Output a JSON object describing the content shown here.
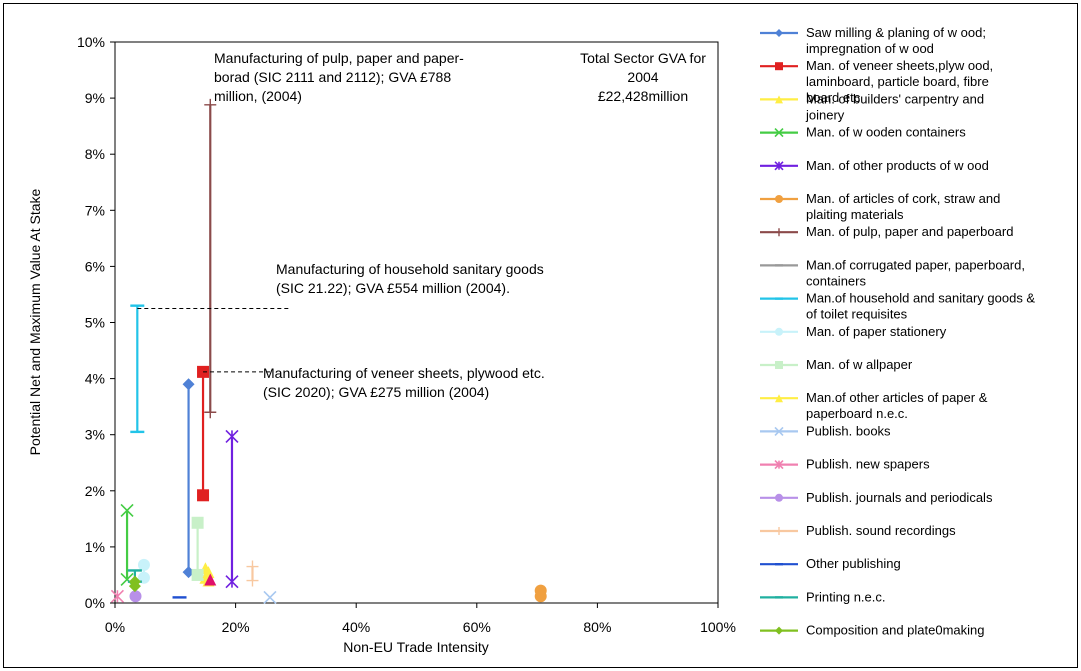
{
  "chart_data": {
    "type": "scatter",
    "xlabel": "Non-EU Trade Intensity",
    "ylabel": "Potential Net and Maximum Value At Stake",
    "xlim": [
      0,
      100
    ],
    "ylim": [
      0,
      10
    ],
    "x_ticks": [
      "0%",
      "20%",
      "40%",
      "60%",
      "80%",
      "100%"
    ],
    "y_ticks": [
      "0%",
      "1%",
      "2%",
      "3%",
      "4%",
      "5%",
      "6%",
      "7%",
      "8%",
      "9%",
      "10%"
    ],
    "grid": false,
    "legend_position": "right",
    "series": [
      {
        "name": "Saw milling & planing of w ood; impregnation of w ood",
        "color": "#4f81d6",
        "marker": "diamond",
        "x": [
          12.2,
          12.2
        ],
        "y": [
          0.55,
          3.9
        ]
      },
      {
        "name": "Man. of veneer sheets,plyw ood, laminboard, particle board, fibre board etc",
        "color": "#e02020",
        "marker": "square",
        "x": [
          14.6,
          14.6
        ],
        "y": [
          1.92,
          4.12
        ]
      },
      {
        "name": "Man. of builders' carpentry and joinery",
        "color": "#ffee44",
        "marker": "triangle",
        "x": [
          15.0,
          15.0
        ],
        "y": [
          0.45,
          0.62
        ]
      },
      {
        "name": "Man. of w ooden containers",
        "color": "#44cc44",
        "marker": "x",
        "x": [
          2.0,
          2.0
        ],
        "y": [
          0.42,
          1.65
        ]
      },
      {
        "name": "Man. of other products of w ood",
        "color": "#7020e0",
        "marker": "star",
        "x": [
          19.4,
          19.4
        ],
        "y": [
          0.38,
          2.97
        ]
      },
      {
        "name": "Man. of articles of cork, straw and plaiting materials",
        "color": "#f0a040",
        "marker": "circle",
        "x": [
          70.6,
          70.6
        ],
        "y": [
          0.12,
          0.22
        ]
      },
      {
        "name": "Man. of pulp, paper and paperboard",
        "color": "#8b4a4a",
        "marker": "plus",
        "x": [
          15.8,
          15.8
        ],
        "y": [
          3.4,
          8.88
        ]
      },
      {
        "name": "Man.of corrugated paper, paperboard, containers",
        "color": "#999999",
        "marker": "dash",
        "x": [],
        "y": []
      },
      {
        "name": "Man.of household and sanitary goods & of toilet requisites",
        "color": "#22c4e8",
        "marker": "dash",
        "x": [
          3.7,
          3.7
        ],
        "y": [
          3.05,
          5.3
        ]
      },
      {
        "name": "Man. of paper stationery",
        "color": "#c8f2fa",
        "marker": "circle",
        "x": [
          4.8,
          4.8
        ],
        "y": [
          0.45,
          0.68
        ]
      },
      {
        "name": "Man. of w allpaper",
        "color": "#c8f0c8",
        "marker": "square",
        "x": [
          13.7,
          13.7
        ],
        "y": [
          0.5,
          1.43
        ]
      },
      {
        "name": "Man.of other articles of paper & paperboard n.e.c.",
        "color": "#ffee44",
        "marker": "triangle",
        "x": [
          15.5,
          15.5
        ],
        "y": [
          0.4,
          0.55
        ]
      },
      {
        "name": "Publish.  books",
        "color": "#a8c8f0",
        "marker": "x",
        "x": [
          25.7
        ],
        "y": [
          0.1
        ]
      },
      {
        "name": "Publish.  new spapers",
        "color": "#f080b0",
        "marker": "star",
        "x": [
          0.4
        ],
        "y": [
          0.12
        ]
      },
      {
        "name": "Publish.  journals and periodicals",
        "color": "#b890e8",
        "marker": "circle",
        "x": [
          3.4
        ],
        "y": [
          0.12
        ]
      },
      {
        "name": "Publish.  sound recordings",
        "color": "#f8c8a0",
        "marker": "plus",
        "x": [
          22.8,
          22.8
        ],
        "y": [
          0.4,
          0.65
        ]
      },
      {
        "name": "Other publishing",
        "color": "#2050d0",
        "marker": "dash",
        "x": [
          10.7
        ],
        "y": [
          0.1
        ]
      },
      {
        "name": "Printing n.e.c.",
        "color": "#20b0a0",
        "marker": "dash",
        "x": [
          3.3,
          3.3
        ],
        "y": [
          0.38,
          0.58
        ]
      },
      {
        "name": "Composition and plate0making",
        "color": "#80c020",
        "marker": "diamond",
        "x": [
          3.3,
          3.3
        ],
        "y": [
          0.3,
          0.38
        ]
      }
    ],
    "extra_markers": [
      {
        "x": 15.8,
        "y": 0.42,
        "color": "#e0106a",
        "marker": "triangle"
      }
    ],
    "annotations": [
      {
        "lines": [
          "Manufacturing of pulp, paper and paper-",
          "borad (SIC 2111 and 2112); GVA £788",
          "million, (2004)"
        ]
      },
      {
        "lines": [
          "Total Sector GVA for",
          "2004",
          "£22,428million"
        ]
      },
      {
        "lines": [
          "Manufacturing of household sanitary goods",
          "(SIC 21.22); GVA £554 million (2004)."
        ]
      },
      {
        "lines": [
          "Manufacturing of veneer sheets, plywood etc.",
          "(SIC 2020); GVA £275 million (2004)"
        ]
      }
    ],
    "leaders": [
      {
        "from": [
          3.7,
          5.25
        ],
        "to": [
          29.0,
          5.25
        ]
      },
      {
        "from": [
          14.6,
          4.12
        ],
        "to": [
          26.0,
          4.12
        ]
      }
    ]
  }
}
